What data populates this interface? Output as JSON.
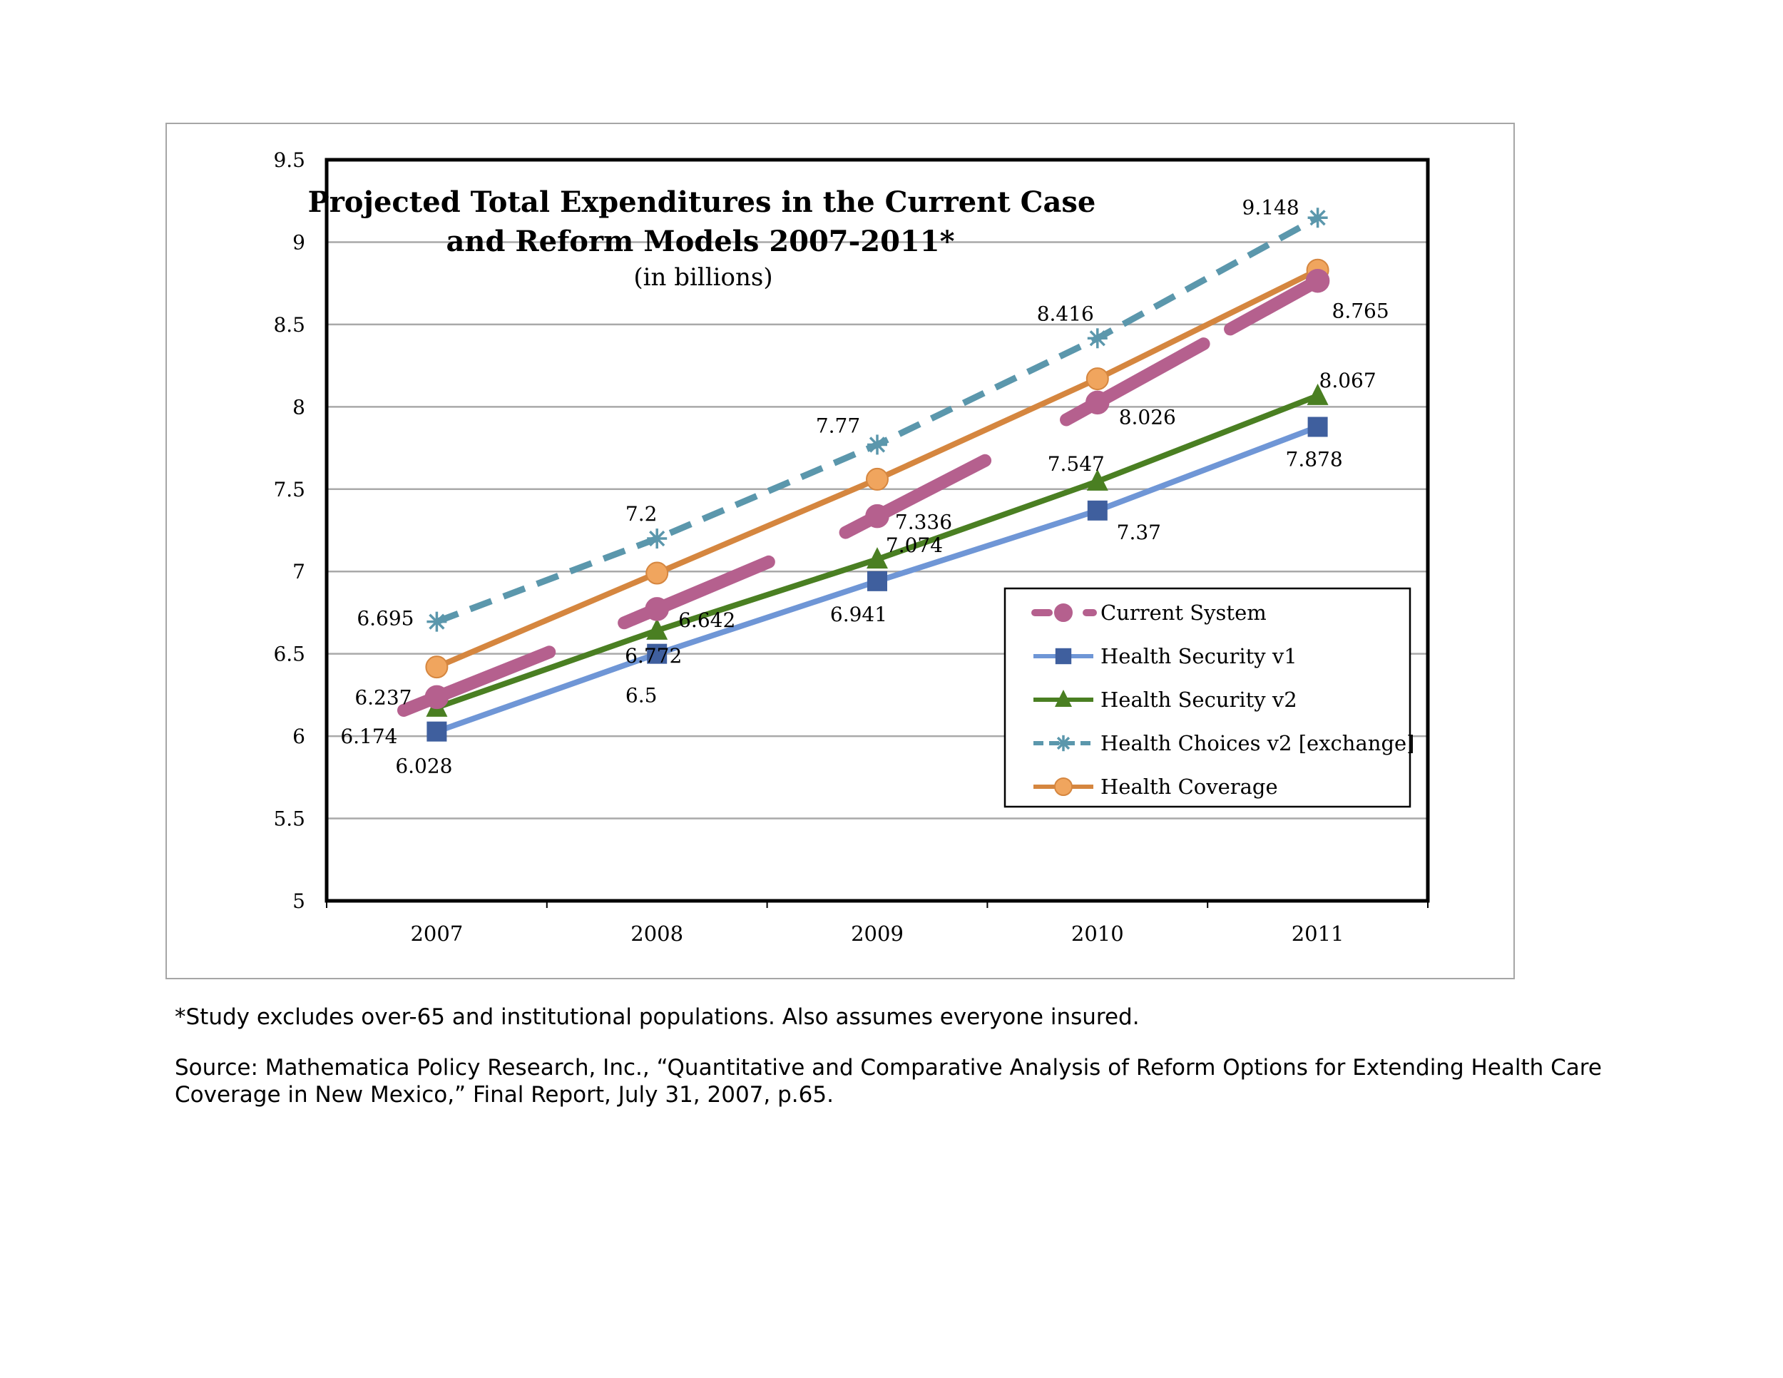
{
  "chart_data": {
    "type": "line",
    "title": "Projected Total Expenditures  in the Current Case",
    "title_line2": "and Reform Models 2007-2011*",
    "subtitle": "(in billions)",
    "categories": [
      "2007",
      "2008",
      "2009",
      "2010",
      "2011"
    ],
    "ylim": [
      5,
      9.5
    ],
    "yticks": [
      "5",
      "5.5",
      "6",
      "6.5",
      "7",
      "7.5",
      "8",
      "8.5",
      "9",
      "9.5"
    ],
    "grid": true,
    "legend_position": "bottom-right",
    "series": [
      {
        "name": "Current System",
        "values": [
          6.237,
          6.772,
          7.336,
          8.026,
          8.765
        ],
        "labels": [
          "6.237",
          "6.772",
          "7.336",
          "8.026",
          "8.765"
        ],
        "color": "#b5608e",
        "marker": "circle",
        "style": "thick-dashed"
      },
      {
        "name": "Health Security v1",
        "values": [
          6.028,
          6.5,
          6.941,
          7.37,
          7.878
        ],
        "labels": [
          "6.028",
          "6.5",
          "6.941",
          "7.37",
          "7.878"
        ],
        "color": "#6f96d6",
        "marker": "square",
        "marker_color": "#3f5f9e",
        "style": "solid"
      },
      {
        "name": "Health Security v2",
        "values": [
          6.174,
          6.642,
          7.074,
          7.547,
          8.067
        ],
        "labels": [
          "6.174",
          "6.642",
          "7.074",
          "7.547",
          "8.067"
        ],
        "color": "#4a7f22",
        "marker": "triangle",
        "style": "solid"
      },
      {
        "name": "Health Choices v2 [exchange]",
        "values": [
          6.695,
          7.2,
          7.77,
          8.416,
          9.148
        ],
        "labels": [
          "6.695",
          "7.2",
          "7.77",
          "8.416",
          "9.148"
        ],
        "color": "#5b97ac",
        "marker": "asterisk",
        "style": "dashed"
      },
      {
        "name": "Health Coverage",
        "values": [
          6.42,
          6.99,
          7.56,
          8.17,
          8.83
        ],
        "labels": [],
        "color": "#d5863f",
        "marker": "circle",
        "marker_color": "#f0a55e",
        "style": "solid"
      }
    ]
  },
  "footnotes": {
    "study": "*Study excludes over-65 and institutional populations. Also assumes everyone insured.",
    "source": "Source:  Mathematica Policy Research, Inc., “Quantitative and Comparative Analysis of Reform Options for Extending Health Care Coverage in New Mexico,” Final Report, July 31, 2007, p.65."
  }
}
